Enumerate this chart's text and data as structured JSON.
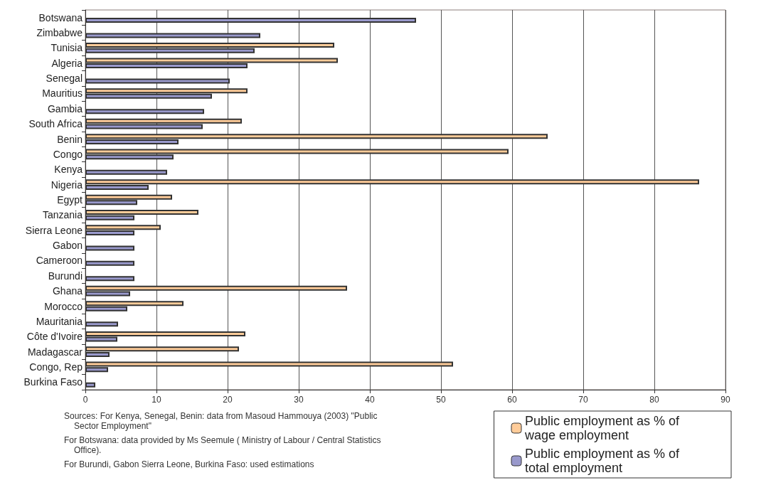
{
  "chart_data": {
    "type": "bar",
    "orientation": "horizontal",
    "categories": [
      "Botswana",
      "Zimbabwe",
      "Tunisia",
      "Algeria",
      "Senegal",
      "Mauritius",
      "Gambia",
      "South Africa",
      "Benin",
      "Congo",
      "Kenya",
      "Nigeria",
      "Egypt",
      "Tanzania",
      "Sierra Leone",
      "Gabon",
      "Cameroon",
      "Burundi",
      "Ghana",
      "Morocco",
      "Mauritania",
      "Côte d'Ivoire",
      "Madagascar",
      "Congo, Rep",
      "Burkina Faso"
    ],
    "series": [
      {
        "name": "Public employment as % of wage employment",
        "color": "#ffcc99",
        "values": [
          null,
          null,
          35,
          35.5,
          null,
          22.8,
          null,
          22,
          65,
          59.5,
          null,
          86.3,
          12.2,
          15.9,
          10.6,
          null,
          null,
          null,
          36.8,
          13.8,
          null,
          22.5,
          21.6,
          51.7,
          null
        ]
      },
      {
        "name": "Public employment as % of total employment",
        "color": "#9999cc",
        "values": [
          46.5,
          24.6,
          23.8,
          22.8,
          20.3,
          17.8,
          16.7,
          16.5,
          13.1,
          12.4,
          11.5,
          8.9,
          7.3,
          6.9,
          6.9,
          6.9,
          6.9,
          6.9,
          6.3,
          5.9,
          4.6,
          4.5,
          3.4,
          3.2,
          1.4
        ]
      }
    ],
    "xlim": [
      0,
      90
    ],
    "xticks": [
      0,
      10,
      20,
      30,
      40,
      50,
      60,
      70,
      80,
      90
    ],
    "grid": "x",
    "legend": "bottom right",
    "annotations": [
      "Sources: For Kenya,  Senegal, Benin: data from Masoud Hammouya (2003) \"Public Sector Employment\"",
      "For Botswana: data provided by  Ms Seemule ( Ministry of Labour / Central Statistics Office).",
      "For Burundi, Gabon Sierra Leone, Burkina Faso: used estimations"
    ]
  }
}
